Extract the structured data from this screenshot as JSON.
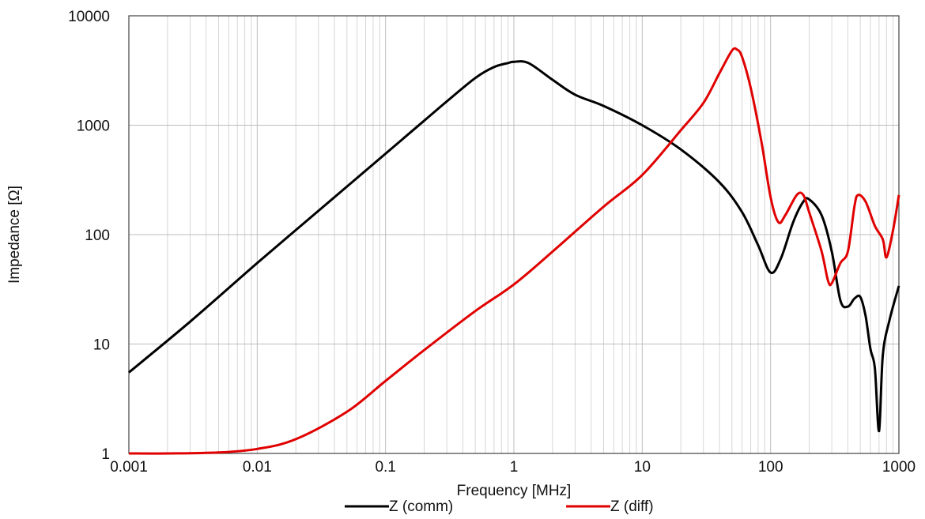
{
  "chart_data": {
    "type": "line",
    "title": "",
    "xlabel": "Frequency [MHz]",
    "ylabel": "Impedance [Ω]",
    "x_scale": "log",
    "y_scale": "log",
    "xlim": [
      0.001,
      1000
    ],
    "ylim": [
      1,
      10000
    ],
    "x_ticks": [
      "0.001",
      "0.01",
      "0.1",
      "1",
      "10",
      "100",
      "1000"
    ],
    "y_ticks": [
      "1",
      "10",
      "100",
      "1000",
      "10000"
    ],
    "grid": true,
    "legend_position": "bottom",
    "series": [
      {
        "name": "Z (comm)",
        "color": "#000000",
        "points": [
          [
            0.001,
            5.5
          ],
          [
            0.003,
            16
          ],
          [
            0.01,
            55
          ],
          [
            0.03,
            165
          ],
          [
            0.1,
            550
          ],
          [
            0.2,
            1100
          ],
          [
            0.3,
            1650
          ],
          [
            0.5,
            2700
          ],
          [
            0.7,
            3400
          ],
          [
            0.9,
            3700
          ],
          [
            1.0,
            3800
          ],
          [
            1.3,
            3700
          ],
          [
            2.0,
            2600
          ],
          [
            3.0,
            1900
          ],
          [
            5.0,
            1500
          ],
          [
            10.0,
            1000
          ],
          [
            20.0,
            600
          ],
          [
            40.0,
            300
          ],
          [
            60.0,
            160
          ],
          [
            80.0,
            80
          ],
          [
            100.0,
            45
          ],
          [
            120.0,
            60
          ],
          [
            150.0,
            130
          ],
          [
            180.0,
            200
          ],
          [
            200.0,
            210
          ],
          [
            250.0,
            150
          ],
          [
            300.0,
            70
          ],
          [
            350.0,
            25
          ],
          [
            400.0,
            22
          ],
          [
            450.0,
            26
          ],
          [
            500.0,
            27
          ],
          [
            550.0,
            18
          ],
          [
            600.0,
            9
          ],
          [
            650.0,
            6
          ],
          [
            700.0,
            1.6
          ],
          [
            750.0,
            8
          ],
          [
            850.0,
            17
          ],
          [
            1000.0,
            34
          ]
        ]
      },
      {
        "name": "Z (diff)",
        "color": "#e00000",
        "points": [
          [
            0.001,
            1.0
          ],
          [
            0.002,
            1.0
          ],
          [
            0.005,
            1.02
          ],
          [
            0.01,
            1.1
          ],
          [
            0.02,
            1.35
          ],
          [
            0.05,
            2.4
          ],
          [
            0.1,
            4.6
          ],
          [
            0.2,
            8.8
          ],
          [
            0.5,
            20
          ],
          [
            1.0,
            35
          ],
          [
            2.0,
            70
          ],
          [
            5.0,
            180
          ],
          [
            10.0,
            350
          ],
          [
            20.0,
            900
          ],
          [
            30.0,
            1600
          ],
          [
            40.0,
            3000
          ],
          [
            50.0,
            4800
          ],
          [
            55.0,
            4900
          ],
          [
            60.0,
            4200
          ],
          [
            70.0,
            2200
          ],
          [
            85.0,
            700
          ],
          [
            100.0,
            220
          ],
          [
            115.0,
            130
          ],
          [
            130.0,
            150
          ],
          [
            160.0,
            230
          ],
          [
            180.0,
            230
          ],
          [
            200.0,
            160
          ],
          [
            250.0,
            70
          ],
          [
            280.0,
            38
          ],
          [
            300.0,
            36
          ],
          [
            350.0,
            55
          ],
          [
            400.0,
            70
          ],
          [
            450.0,
            180
          ],
          [
            480.0,
            230
          ],
          [
            550.0,
            200
          ],
          [
            650.0,
            120
          ],
          [
            750.0,
            90
          ],
          [
            800.0,
            62
          ],
          [
            900.0,
            110
          ],
          [
            1000.0,
            230
          ]
        ]
      }
    ]
  }
}
